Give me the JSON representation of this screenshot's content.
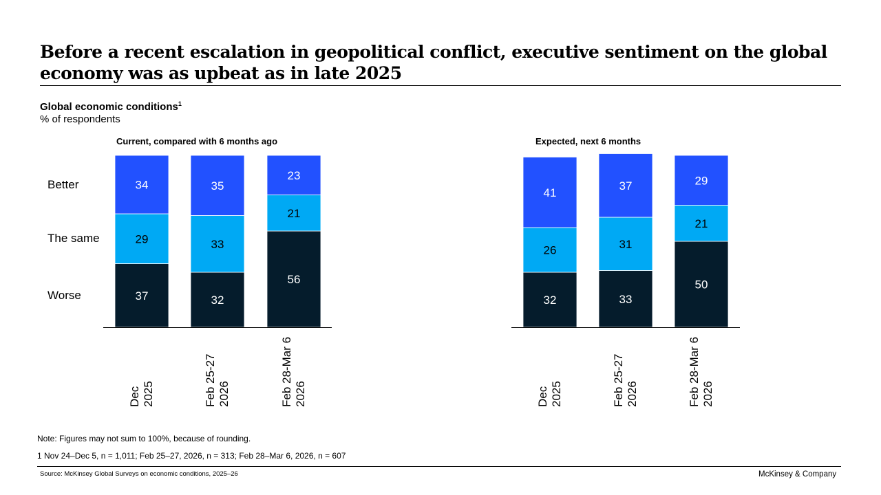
{
  "title": "Before a recent escalation in geopolitical conflict, executive sentiment on the global economy was as upbeat as in late 2025",
  "subtitle": "Global economic conditions",
  "subtitle_footnote": "1",
  "unit": "% of respondents",
  "row_labels": [
    "Better",
    "The same",
    "Worse"
  ],
  "colors": {
    "better": "#2251ff",
    "same": "#00a9f4",
    "worse": "#051c2c"
  },
  "chart_data": [
    {
      "type": "bar",
      "stacked": true,
      "title": "Current, compared with 6 months ago",
      "categories": [
        "Dec 2025",
        "Feb 25-27 2026",
        "Feb 28-Mar 6 2026"
      ],
      "category_lines": [
        [
          "Dec",
          "2025"
        ],
        [
          "Feb 25-27",
          "2026"
        ],
        [
          "Feb 28-Mar 6",
          "2026"
        ]
      ],
      "series": [
        {
          "name": "Worse",
          "values": [
            37,
            32,
            56
          ]
        },
        {
          "name": "The same",
          "values": [
            29,
            33,
            21
          ]
        },
        {
          "name": "Better",
          "values": [
            34,
            35,
            23
          ]
        }
      ]
    },
    {
      "type": "bar",
      "stacked": true,
      "title": "Expected, next 6 months",
      "categories": [
        "Dec 2025",
        "Feb 25-27 2026",
        "Feb 28-Mar 6 2026"
      ],
      "category_lines": [
        [
          "Dec",
          "2025"
        ],
        [
          "Feb 25-27",
          "2026"
        ],
        [
          "Feb 28-Mar 6",
          "2026"
        ]
      ],
      "series": [
        {
          "name": "Worse",
          "values": [
            32,
            33,
            50
          ]
        },
        {
          "name": "The same",
          "values": [
            26,
            31,
            21
          ]
        },
        {
          "name": "Better",
          "values": [
            41,
            37,
            29
          ]
        }
      ]
    }
  ],
  "note": "Note: Figures may not sum to 100%, because of rounding.",
  "footnote": "1 Nov 24–Dec 5, n = 1,011; Feb 25–27, 2026, n = 313; Feb 28–Mar 6, 2026, n = 607",
  "source": "Source: McKinsey Global Surveys on economic conditions, 2025–26",
  "brand": "McKinsey & Company"
}
